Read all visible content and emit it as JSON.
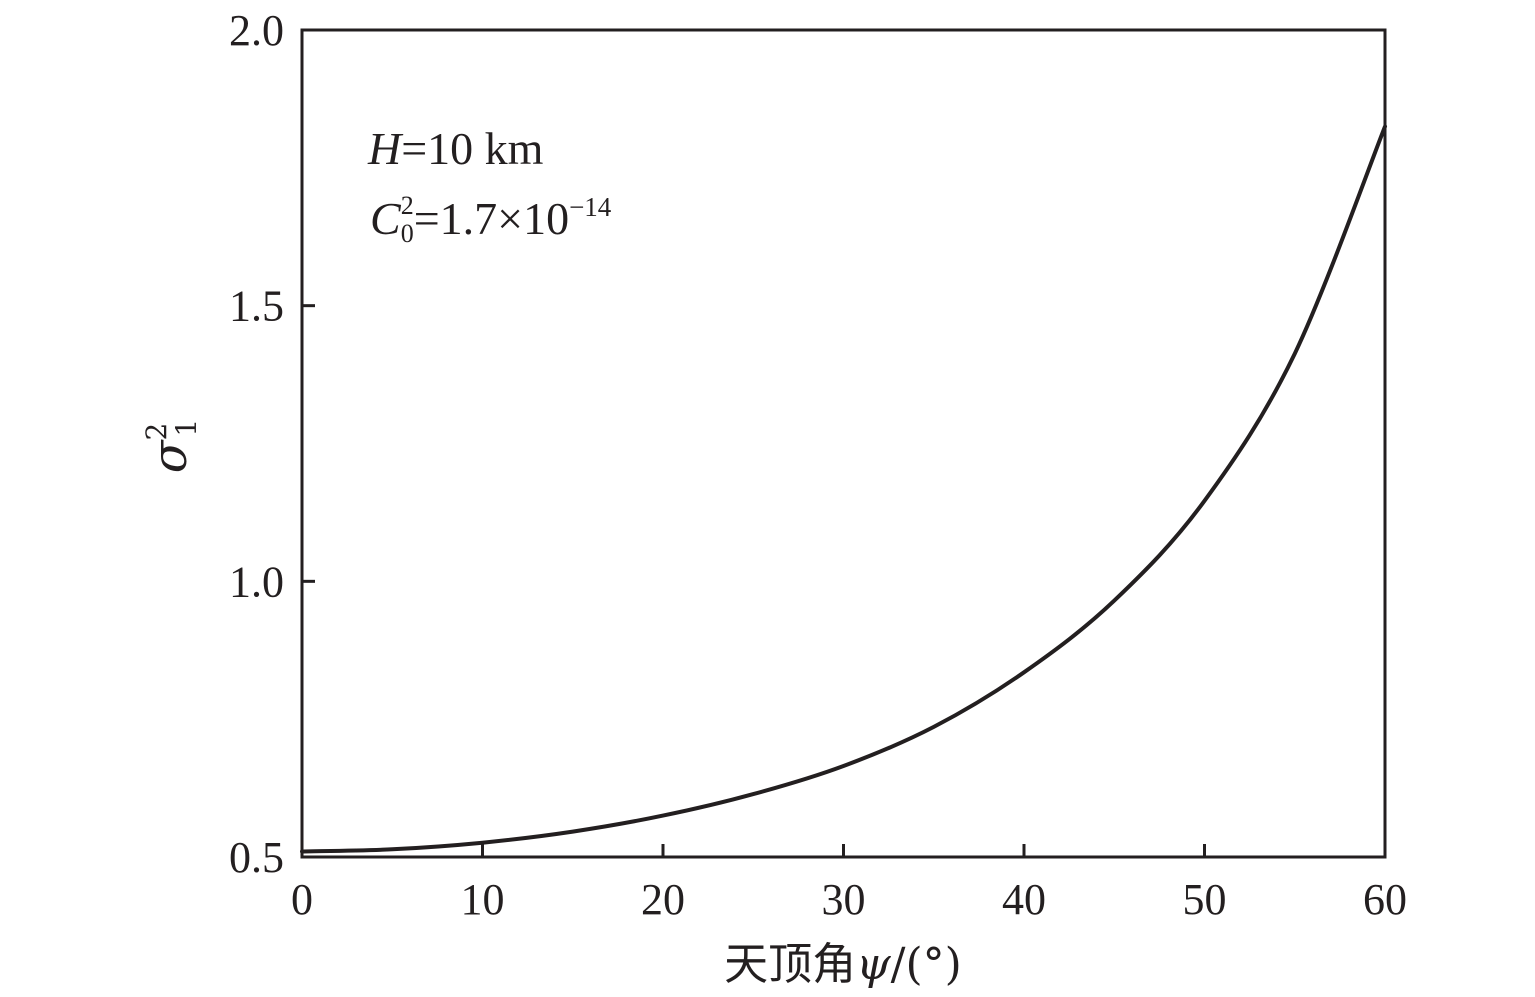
{
  "chart_data": {
    "type": "line",
    "xlabel": {
      "prefix": "天顶角",
      "symbol": "ψ",
      "suffix": "/(°)"
    },
    "ylabel": {
      "symbol": "σ",
      "subscript": "1",
      "superscript": "2"
    },
    "xlim": [
      0,
      60
    ],
    "ylim": [
      0.5,
      2.0
    ],
    "x_ticks": [
      "0",
      "10",
      "20",
      "30",
      "40",
      "50",
      "60"
    ],
    "y_ticks": [
      "0.5",
      "1.0",
      "1.5",
      "2.0"
    ],
    "x_tick_values": [
      0,
      10,
      20,
      30,
      40,
      50,
      60
    ],
    "y_tick_values": [
      0.5,
      1.0,
      1.5,
      2.0
    ],
    "grid": false,
    "annotations": {
      "line1": {
        "var": "H",
        "text": "=10 km"
      },
      "line2": {
        "var": "C",
        "sub": "0",
        "sup": "2",
        "text": "=1.7×10",
        "exp": "−14"
      }
    },
    "series": [
      {
        "color": "#231f20",
        "x": [
          0,
          5,
          10,
          15,
          20,
          25,
          30,
          35,
          40,
          45,
          50,
          55,
          60
        ],
        "y": [
          0.51,
          0.514,
          0.526,
          0.546,
          0.575,
          0.614,
          0.665,
          0.736,
          0.835,
          0.965,
          1.146,
          1.413,
          1.825
        ]
      }
    ]
  }
}
